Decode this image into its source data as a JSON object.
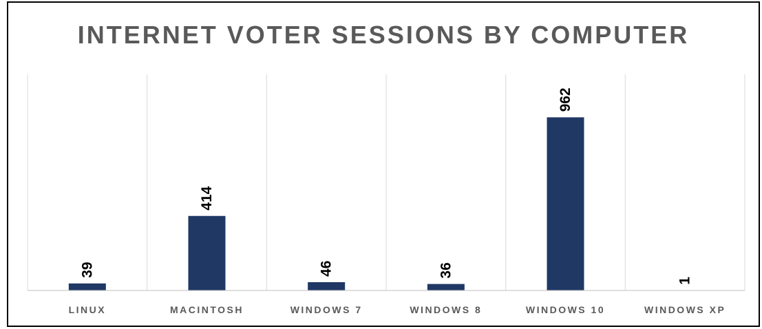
{
  "chart_data": {
    "type": "bar",
    "title": "INTERNET VOTER SESSIONS BY COMPUTER",
    "categories": [
      "LINUX",
      "MACINTOSH",
      "WINDOWS 7",
      "WINDOWS 8",
      "WINDOWS 10",
      "WINDOWS XP"
    ],
    "series": [
      {
        "values": [
          39,
          414,
          46,
          36,
          962,
          1
        ]
      }
    ],
    "data_labels": [
      "39",
      "414",
      "46",
      "36",
      "962",
      "1"
    ],
    "xlabel": "",
    "ylabel": "",
    "ylim": [
      0,
      1200
    ],
    "data_label_orientation": "rotated",
    "grid": "vertical",
    "legend": "none",
    "colors": {
      "bar": "#203864",
      "title": "#595959",
      "axis_text": "#595959",
      "gridline": "#d9d9d9",
      "axis_line": "#bfbfbf",
      "frame": "#000000"
    }
  }
}
